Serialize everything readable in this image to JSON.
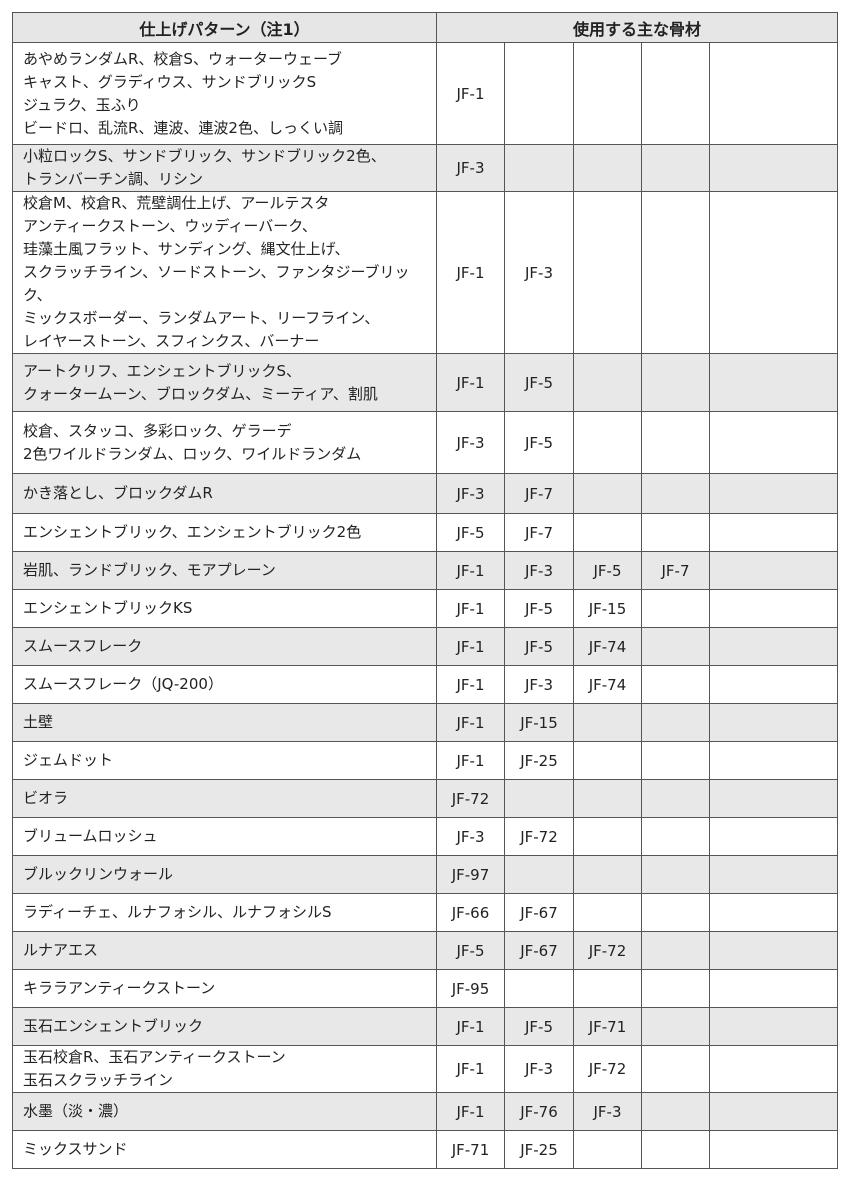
{
  "header": {
    "pattern": "仕上げパターン（注1）",
    "aggregate": "使用する主な骨材"
  },
  "table": {
    "rows": [
      {
        "pattern": [
          "あやめランダムR、校倉S、ウォーターウェーブ",
          "キャスト、グラディウス、サンドブリックS",
          "ジュラク、玉ふり",
          "ビードロ、乱流R、連波、連波2色、しっくい調"
        ],
        "aggregates": [
          "JF-1"
        ]
      },
      {
        "pattern": [
          "小粒ロックS、サンドブリック、サンドブリック2色、",
          "トランバーチン調、リシン"
        ],
        "aggregates": [
          "JF-3"
        ]
      },
      {
        "pattern": [
          "校倉M、校倉R、荒壁調仕上げ、アールテスタ",
          "アンティークストーン、ウッディーバーク、",
          "珪藻土風フラット、サンディング、縄文仕上げ、",
          "スクラッチライン、ソードストーン、ファンタジーブリック、",
          "ミックスボーダー、ランダムアート、リーフライン、",
          "レイヤーストーン、スフィンクス、バーナー"
        ],
        "aggregates": [
          "JF-1",
          "JF-3"
        ]
      },
      {
        "pattern": [
          "アートクリフ、エンシェントブリックS、",
          "クォータームーン、ブロックダム、ミーティア、割肌"
        ],
        "aggregates": [
          "JF-1",
          "JF-5"
        ]
      },
      {
        "pattern": [
          "校倉、スタッコ、多彩ロック、ゲラーデ",
          "2色ワイルドランダム、ロック、ワイルドランダム"
        ],
        "aggregates": [
          "JF-3",
          "JF-5"
        ]
      },
      {
        "pattern": [
          "かき落とし、ブロックダムR"
        ],
        "aggregates": [
          "JF-3",
          "JF-7"
        ]
      },
      {
        "pattern": [
          "エンシェントブリック、エンシェントブリック2色"
        ],
        "aggregates": [
          "JF-5",
          "JF-7"
        ]
      },
      {
        "pattern": [
          "岩肌、ランドブリック、モアプレーン"
        ],
        "aggregates": [
          "JF-1",
          "JF-3",
          "JF-5",
          "JF-7"
        ]
      },
      {
        "pattern": [
          "エンシェントブリックKS"
        ],
        "aggregates": [
          "JF-1",
          "JF-5",
          "JF-15"
        ]
      },
      {
        "pattern": [
          "スムースフレーク"
        ],
        "aggregates": [
          "JF-1",
          "JF-5",
          "JF-74"
        ]
      },
      {
        "pattern": [
          "スムースフレーク（JQ-200）"
        ],
        "aggregates": [
          "JF-1",
          "JF-3",
          "JF-74"
        ]
      },
      {
        "pattern": [
          "土壁"
        ],
        "aggregates": [
          "JF-1",
          "JF-15"
        ]
      },
      {
        "pattern": [
          "ジェムドット"
        ],
        "aggregates": [
          "JF-1",
          "JF-25"
        ]
      },
      {
        "pattern": [
          "ビオラ"
        ],
        "aggregates": [
          "JF-72"
        ]
      },
      {
        "pattern": [
          "ブリュームロッシュ"
        ],
        "aggregates": [
          "JF-3",
          "JF-72"
        ]
      },
      {
        "pattern": [
          "ブルックリンウォール"
        ],
        "aggregates": [
          "JF-97"
        ]
      },
      {
        "pattern": [
          "ラディーチェ、ルナフォシル、ルナフォシルS"
        ],
        "aggregates": [
          "JF-66",
          "JF-67"
        ]
      },
      {
        "pattern": [
          "ルナアエス"
        ],
        "aggregates": [
          "JF-5",
          "JF-67",
          "JF-72"
        ]
      },
      {
        "pattern": [
          "キララアンティークストーン"
        ],
        "aggregates": [
          "JF-95"
        ]
      },
      {
        "pattern": [
          "玉石エンシェントブリック"
        ],
        "aggregates": [
          "JF-1",
          "JF-5",
          "JF-71"
        ]
      },
      {
        "pattern": [
          "玉石校倉R、玉石アンティークストーン",
          "玉石スクラッチライン"
        ],
        "aggregates": [
          "JF-1",
          "JF-3",
          "JF-72"
        ]
      },
      {
        "pattern": [
          "水墨（淡・濃）"
        ],
        "aggregates": [
          "JF-1",
          "JF-76",
          "JF-3"
        ]
      },
      {
        "pattern": [
          "ミックスサンド"
        ],
        "aggregates": [
          "JF-71",
          "JF-25"
        ]
      }
    ]
  }
}
